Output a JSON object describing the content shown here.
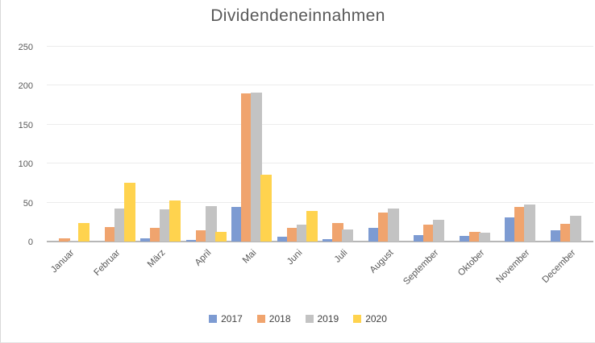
{
  "chart_data": {
    "type": "bar",
    "title": "Dividendeneinnahmen",
    "categories": [
      "Januar",
      "Februar",
      "März",
      "April",
      "Mai",
      "Juni",
      "Juli",
      "August",
      "September",
      "Oktober",
      "November",
      "December"
    ],
    "series": [
      {
        "name": "2017",
        "color": "#7D9BD2",
        "values": [
          0,
          0,
          4,
          2,
          44,
          6,
          3,
          18,
          8,
          7,
          31,
          14
        ]
      },
      {
        "name": "2018",
        "color": "#F0A46E",
        "values": [
          4,
          19,
          18,
          14,
          190,
          18,
          24,
          37,
          22,
          12,
          44,
          23
        ]
      },
      {
        "name": "2019",
        "color": "#C3C3C3",
        "values": [
          1,
          42,
          41,
          45,
          191,
          22,
          15,
          42,
          28,
          11,
          48,
          33
        ]
      },
      {
        "name": "2020",
        "color": "#FFD34E",
        "values": [
          24,
          75,
          53,
          12,
          86,
          39,
          0,
          0,
          0,
          0,
          0,
          0
        ]
      }
    ],
    "xlabel": "",
    "ylabel": "",
    "ylim": [
      0,
      250
    ],
    "yticks": [
      0,
      50,
      100,
      150,
      200,
      250
    ],
    "grid": true,
    "legend_position": "bottom",
    "gridline_color": "#ECECEC",
    "axis_color": "#B7B7B7",
    "text_color": "#595959"
  }
}
